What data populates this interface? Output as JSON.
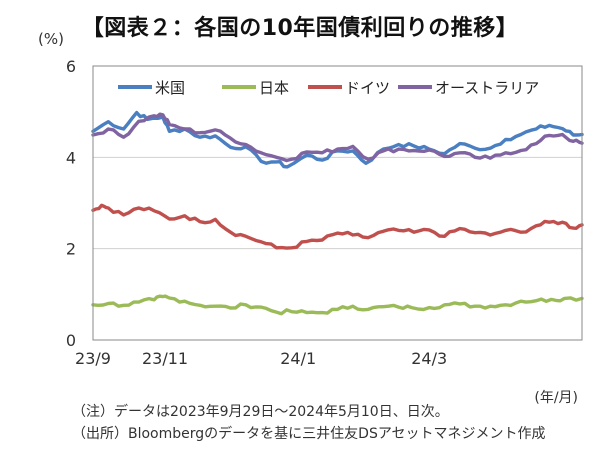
{
  "colors": {
    "us": "#4a7fc1",
    "japan": "#9bbb59",
    "germany": "#c0504d",
    "australia": "#8064a2",
    "grid": "#d0d0d0",
    "frame": "#8a8a8a"
  },
  "chart_data": {
    "type": "line",
    "title": "【図表２：各国の10年国債利回りの推移】",
    "y_unit": "(%)",
    "x_unit": "(年/月)",
    "ylim": [
      0,
      6
    ],
    "yticks": [
      "0",
      "2",
      "4",
      "6"
    ],
    "x_ticks": [
      {
        "label": "23/9",
        "date": "2023-09-29"
      },
      {
        "label": "23/11",
        "date": "2023-11-01"
      },
      {
        "label": "24/1",
        "date": "2024-01-01"
      },
      {
        "label": "24/3",
        "date": "2024-03-01"
      }
    ],
    "x_range": [
      "2023-09-29",
      "2024-05-10"
    ],
    "grid": "horizontal",
    "legend_position": "top",
    "series": [
      {
        "name": "米国",
        "color_key": "us",
        "points": [
          [
            "2023-09-29",
            4.57
          ],
          [
            "2023-10-06",
            4.78
          ],
          [
            "2023-10-13",
            4.62
          ],
          [
            "2023-10-19",
            4.98
          ],
          [
            "2023-10-24",
            4.83
          ],
          [
            "2023-10-31",
            4.88
          ],
          [
            "2023-11-03",
            4.57
          ],
          [
            "2023-11-10",
            4.62
          ],
          [
            "2023-11-17",
            4.44
          ],
          [
            "2023-11-24",
            4.47
          ],
          [
            "2023-12-01",
            4.22
          ],
          [
            "2023-12-08",
            4.23
          ],
          [
            "2023-12-15",
            3.91
          ],
          [
            "2023-12-22",
            3.9
          ],
          [
            "2023-12-27",
            3.79
          ],
          [
            "2024-01-05",
            4.05
          ],
          [
            "2024-01-12",
            3.94
          ],
          [
            "2024-01-19",
            4.14
          ],
          [
            "2024-01-26",
            4.14
          ],
          [
            "2024-02-01",
            3.87
          ],
          [
            "2024-02-09",
            4.18
          ],
          [
            "2024-02-16",
            4.28
          ],
          [
            "2024-02-23",
            4.25
          ],
          [
            "2024-03-01",
            4.18
          ],
          [
            "2024-03-08",
            4.08
          ],
          [
            "2024-03-15",
            4.3
          ],
          [
            "2024-03-22",
            4.2
          ],
          [
            "2024-03-29",
            4.2
          ],
          [
            "2024-04-05",
            4.39
          ],
          [
            "2024-04-12",
            4.5
          ],
          [
            "2024-04-19",
            4.62
          ],
          [
            "2024-04-25",
            4.7
          ],
          [
            "2024-05-01",
            4.63
          ],
          [
            "2024-05-06",
            4.49
          ],
          [
            "2024-05-10",
            4.5
          ]
        ]
      },
      {
        "name": "日本",
        "color_key": "japan",
        "points": [
          [
            "2023-09-29",
            0.77
          ],
          [
            "2023-10-06",
            0.8
          ],
          [
            "2023-10-13",
            0.76
          ],
          [
            "2023-10-20",
            0.83
          ],
          [
            "2023-10-27",
            0.88
          ],
          [
            "2023-10-31",
            0.95
          ],
          [
            "2023-11-03",
            0.92
          ],
          [
            "2023-11-10",
            0.85
          ],
          [
            "2023-11-17",
            0.76
          ],
          [
            "2023-11-24",
            0.74
          ],
          [
            "2023-12-01",
            0.7
          ],
          [
            "2023-12-08",
            0.77
          ],
          [
            "2023-12-15",
            0.72
          ],
          [
            "2023-12-22",
            0.61
          ],
          [
            "2023-12-29",
            0.62
          ],
          [
            "2024-01-05",
            0.6
          ],
          [
            "2024-01-12",
            0.6
          ],
          [
            "2024-01-19",
            0.67
          ],
          [
            "2024-01-26",
            0.74
          ],
          [
            "2024-02-02",
            0.67
          ],
          [
            "2024-02-09",
            0.73
          ],
          [
            "2024-02-16",
            0.72
          ],
          [
            "2024-02-22",
            0.71
          ],
          [
            "2024-03-01",
            0.71
          ],
          [
            "2024-03-08",
            0.77
          ],
          [
            "2024-03-15",
            0.79
          ],
          [
            "2024-03-22",
            0.74
          ],
          [
            "2024-03-29",
            0.74
          ],
          [
            "2024-04-05",
            0.77
          ],
          [
            "2024-04-12",
            0.85
          ],
          [
            "2024-04-19",
            0.86
          ],
          [
            "2024-04-26",
            0.89
          ],
          [
            "2024-05-02",
            0.91
          ],
          [
            "2024-05-10",
            0.91
          ]
        ]
      },
      {
        "name": "ドイツ",
        "color_key": "germany",
        "points": [
          [
            "2023-09-29",
            2.84
          ],
          [
            "2023-10-03",
            2.95
          ],
          [
            "2023-10-06",
            2.89
          ],
          [
            "2023-10-13",
            2.74
          ],
          [
            "2023-10-20",
            2.89
          ],
          [
            "2023-10-27",
            2.83
          ],
          [
            "2023-11-03",
            2.65
          ],
          [
            "2023-11-10",
            2.72
          ],
          [
            "2023-11-17",
            2.59
          ],
          [
            "2023-11-24",
            2.64
          ],
          [
            "2023-12-01",
            2.36
          ],
          [
            "2023-12-08",
            2.27
          ],
          [
            "2023-12-15",
            2.15
          ],
          [
            "2023-12-22",
            2.02
          ],
          [
            "2023-12-29",
            2.02
          ],
          [
            "2024-01-05",
            2.16
          ],
          [
            "2024-01-12",
            2.19
          ],
          [
            "2024-01-19",
            2.34
          ],
          [
            "2024-01-26",
            2.3
          ],
          [
            "2024-02-02",
            2.24
          ],
          [
            "2024-02-09",
            2.38
          ],
          [
            "2024-02-16",
            2.4
          ],
          [
            "2024-02-23",
            2.36
          ],
          [
            "2024-03-01",
            2.41
          ],
          [
            "2024-03-08",
            2.27
          ],
          [
            "2024-03-15",
            2.44
          ],
          [
            "2024-03-22",
            2.35
          ],
          [
            "2024-03-29",
            2.3
          ],
          [
            "2024-04-05",
            2.4
          ],
          [
            "2024-04-12",
            2.36
          ],
          [
            "2024-04-19",
            2.5
          ],
          [
            "2024-04-25",
            2.58
          ],
          [
            "2024-05-01",
            2.58
          ],
          [
            "2024-05-06",
            2.45
          ],
          [
            "2024-05-10",
            2.52
          ]
        ]
      },
      {
        "name": "オーストラリア",
        "color_key": "australia",
        "points": [
          [
            "2023-09-29",
            4.49
          ],
          [
            "2023-10-06",
            4.62
          ],
          [
            "2023-10-13",
            4.44
          ],
          [
            "2023-10-20",
            4.79
          ],
          [
            "2023-10-27",
            4.91
          ],
          [
            "2023-10-31",
            4.93
          ],
          [
            "2023-11-03",
            4.72
          ],
          [
            "2023-11-10",
            4.62
          ],
          [
            "2023-11-17",
            4.54
          ],
          [
            "2023-11-24",
            4.6
          ],
          [
            "2023-12-01",
            4.42
          ],
          [
            "2023-12-08",
            4.28
          ],
          [
            "2023-12-15",
            4.1
          ],
          [
            "2023-12-22",
            4.0
          ],
          [
            "2023-12-29",
            3.96
          ],
          [
            "2024-01-05",
            4.12
          ],
          [
            "2024-01-12",
            4.1
          ],
          [
            "2024-01-19",
            4.18
          ],
          [
            "2024-01-26",
            4.24
          ],
          [
            "2024-02-02",
            3.96
          ],
          [
            "2024-02-09",
            4.14
          ],
          [
            "2024-02-16",
            4.18
          ],
          [
            "2024-02-23",
            4.15
          ],
          [
            "2024-03-01",
            4.16
          ],
          [
            "2024-03-08",
            4.02
          ],
          [
            "2024-03-15",
            4.1
          ],
          [
            "2024-03-22",
            4.0
          ],
          [
            "2024-03-29",
            3.98
          ],
          [
            "2024-04-05",
            4.1
          ],
          [
            "2024-04-12",
            4.15
          ],
          [
            "2024-04-19",
            4.3
          ],
          [
            "2024-04-25",
            4.48
          ],
          [
            "2024-05-01",
            4.5
          ],
          [
            "2024-05-06",
            4.35
          ],
          [
            "2024-05-10",
            4.31
          ]
        ]
      }
    ]
  },
  "notes": [
    "（注）データは2023年9月29日～2024年5月10日、日次。",
    "（出所）Bloombergのデータを基に三井住友DSアセットマネジメント作成"
  ]
}
